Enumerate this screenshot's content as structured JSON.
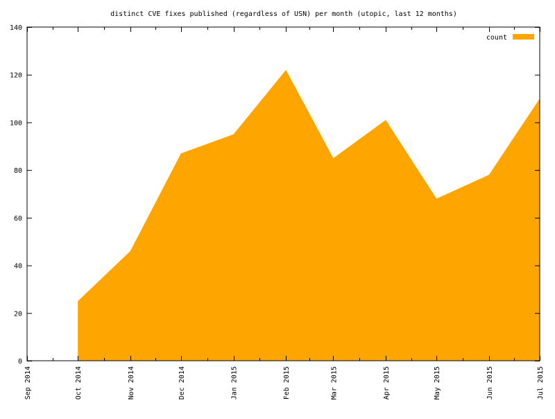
{
  "chart_data": {
    "type": "area",
    "title": "distinct CVE fixes published (regardless of USN) per month (utopic, last 12 months)",
    "xlabel": "",
    "ylabel": "",
    "ylim": [
      0,
      140
    ],
    "yticks": [
      0,
      20,
      40,
      60,
      80,
      100,
      120,
      140
    ],
    "x_axis_kind": "date",
    "xlim": [
      "2014-09-01",
      "2015-07-01"
    ],
    "xtick_labels": [
      "Sep 2014",
      "Oct 2014",
      "Nov 2014",
      "Dec 2014",
      "Jan 2015",
      "Feb 2015",
      "Mar 2015",
      "Apr 2015",
      "May 2015",
      "Jun 2015",
      "Jul 2015"
    ],
    "xtick_dates": [
      "2014-09-01",
      "2014-10-01",
      "2014-11-01",
      "2014-12-01",
      "2015-01-01",
      "2015-02-01",
      "2015-03-01",
      "2015-04-01",
      "2015-05-01",
      "2015-06-01",
      "2015-07-01"
    ],
    "series": [
      {
        "name": "count",
        "color": "#ffa500",
        "points": [
          {
            "x": "2014-10-01",
            "y": 25
          },
          {
            "x": "2014-11-01",
            "y": 46
          },
          {
            "x": "2014-12-01",
            "y": 87
          },
          {
            "x": "2015-01-01",
            "y": 95
          },
          {
            "x": "2015-02-01",
            "y": 122
          },
          {
            "x": "2015-03-01",
            "y": 85
          },
          {
            "x": "2015-04-01",
            "y": 101
          },
          {
            "x": "2015-05-01",
            "y": 68
          },
          {
            "x": "2015-06-01",
            "y": 78
          },
          {
            "x": "2015-07-01",
            "y": 110
          }
        ]
      }
    ],
    "legend": {
      "position": "top-right",
      "entries": [
        "count"
      ]
    },
    "grid": false
  }
}
